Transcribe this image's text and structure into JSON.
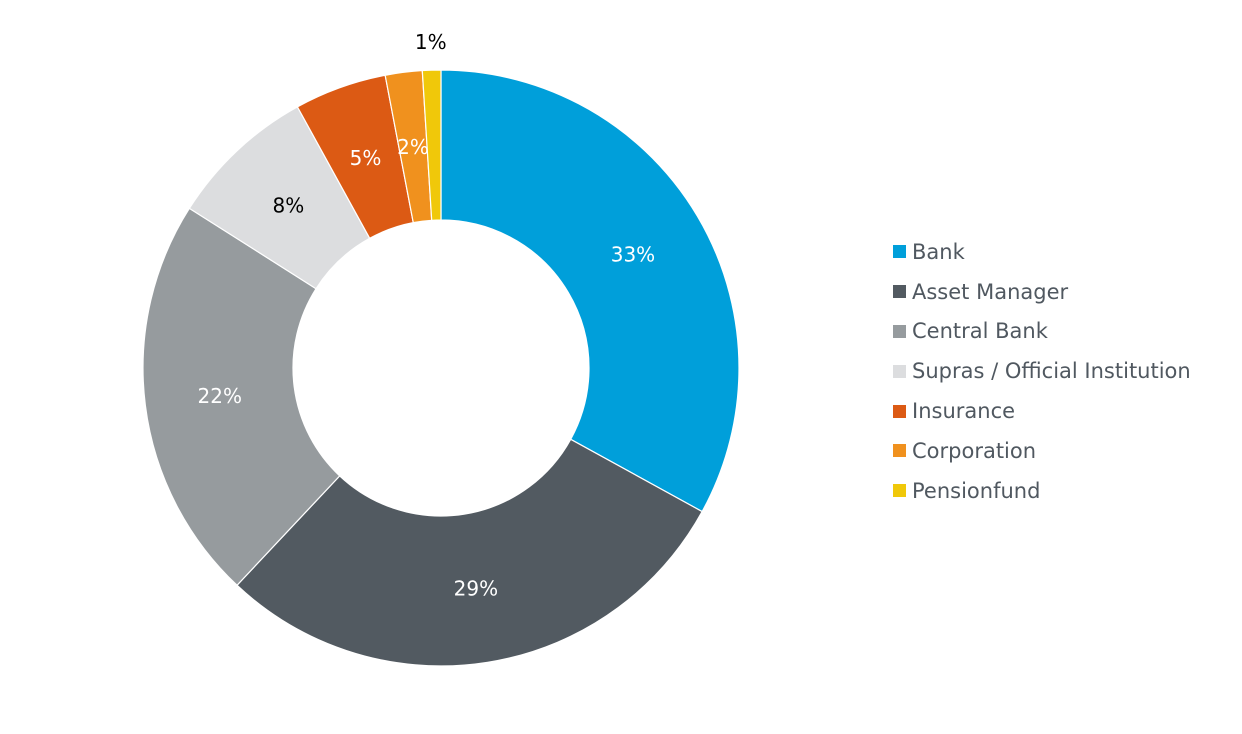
{
  "chart_data": {
    "type": "pie",
    "donut": true,
    "start_angle_deg": 0,
    "direction": "clockwise",
    "legend_position": "right",
    "slices": [
      {
        "name": "Bank",
        "value": 33,
        "label": "33%",
        "color": "#009fda",
        "label_color": "#ffffff"
      },
      {
        "name": "Asset Manager",
        "value": 29,
        "label": "29%",
        "color": "#525a61",
        "label_color": "#ffffff"
      },
      {
        "name": "Central Bank",
        "value": 22,
        "label": "22%",
        "color": "#969b9e",
        "label_color": "#ffffff"
      },
      {
        "name": "Supras / Official Institution",
        "value": 8,
        "label": "8%",
        "color": "#dcdddf",
        "label_color": "#000000"
      },
      {
        "name": "Insurance",
        "value": 5,
        "label": "5%",
        "color": "#dc5a14",
        "label_color": "#ffffff"
      },
      {
        "name": "Corporation",
        "value": 2,
        "label": "2%",
        "color": "#f0911e",
        "label_color": "#ffffff"
      },
      {
        "name": "Pensionfund",
        "value": 1,
        "label": "1%",
        "color": "#f0c80a",
        "label_color": "#000000",
        "label_outside": true
      }
    ]
  }
}
